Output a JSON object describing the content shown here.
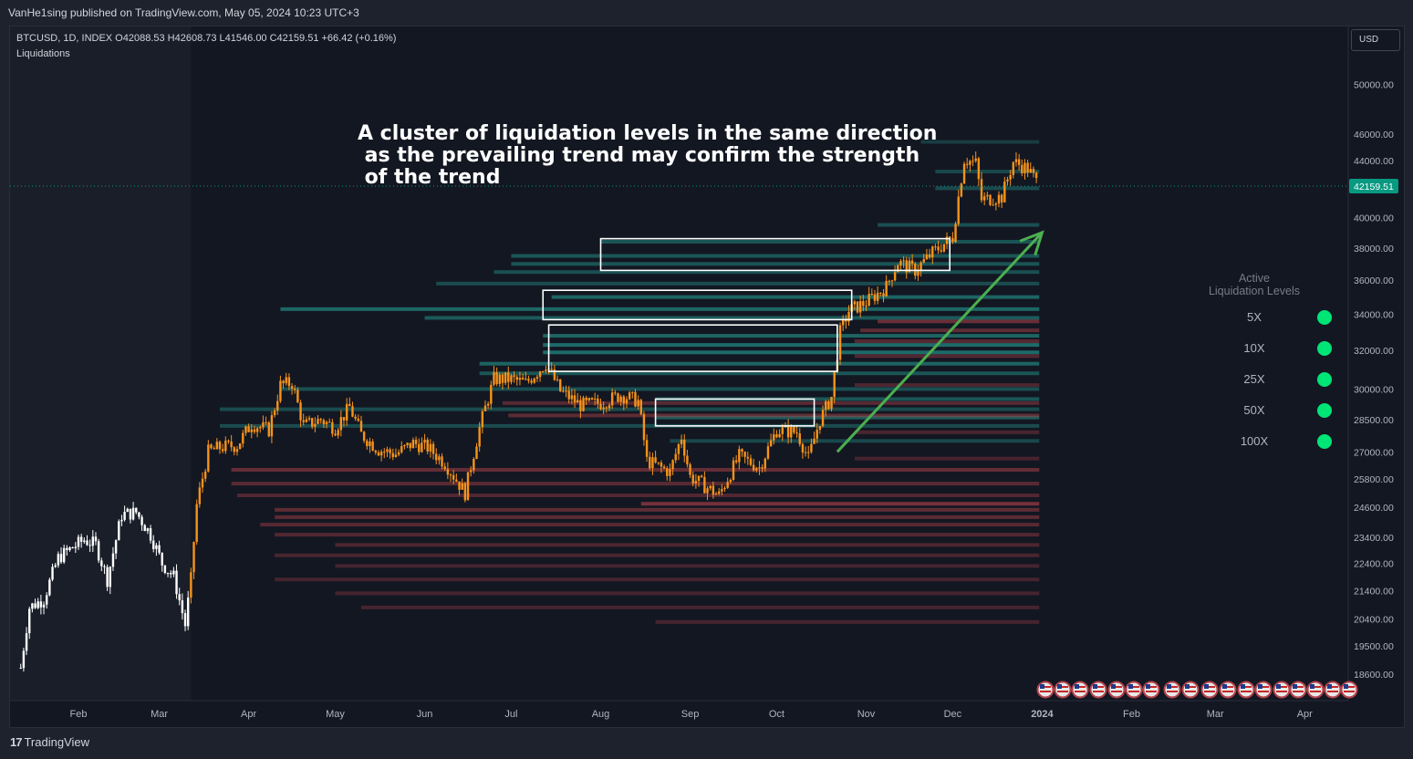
{
  "header": {
    "published": "VanHe1sing published on TradingView.com, May 05, 2024 10:23 UTC+3"
  },
  "symbol": {
    "line": "BTCUSD, 1D, INDEX  O42088.53  H42608.73  L41546.00  C42159.51  +66.42 (+0.16%)",
    "indicator": "Liquidations"
  },
  "currency_label": "USD",
  "annotation": {
    "lines": [
      "A cluster of liquidation levels in the same direction",
      " as the prevailing trend may confirm the strength",
      " of the trend"
    ]
  },
  "legend": {
    "title_line1": "Active",
    "title_line2": "Liquidation Levels",
    "items": [
      {
        "label": "5X",
        "color": "#00e676"
      },
      {
        "label": "10X",
        "color": "#00e676"
      },
      {
        "label": "25X",
        "color": "#00e676"
      },
      {
        "label": "50X",
        "color": "#00e676"
      },
      {
        "label": "100X",
        "color": "#00e676"
      }
    ]
  },
  "footer": {
    "brand": "TradingView",
    "brand_mark": "17"
  },
  "colors": {
    "background": "#131722",
    "candle_pre_indicator": "#ffffff",
    "candle": "#f7931a",
    "long_liquidation": "#26a69a",
    "short_liquidation": "#b2424a",
    "highlight_box": "#ffffff",
    "trend_arrow": "#4caf50",
    "price_label": "#089981"
  },
  "chart_data": {
    "type": "candlestick",
    "title": "BTCUSD, 1D, INDEX",
    "ylabel": "USD",
    "x_ticks": [
      "Feb",
      "Mar",
      "Apr",
      "May",
      "Jun",
      "Jul",
      "Aug",
      "Sep",
      "Oct",
      "Nov",
      "Dec",
      "2024",
      "Feb",
      "Mar",
      "Apr"
    ],
    "y_ticks": [
      50000,
      46000,
      44000,
      40000,
      38000,
      36000,
      34000,
      32000,
      30000,
      28500,
      27000,
      25800,
      24600,
      23400,
      22400,
      21400,
      20400,
      19500,
      18600
    ],
    "y_tick_labels": [
      "50000.00",
      "46000.00",
      "44000.00",
      "40000.00",
      "38000.00",
      "36000.00",
      "34000.00",
      "32000.00",
      "30000.00",
      "28500.00",
      "27000.00",
      "25800.00",
      "24600.00",
      "23400.00",
      "22400.00",
      "21400.00",
      "20400.00",
      "19500.00",
      "18600.00"
    ],
    "last_price": 42159.51,
    "last_price_label": "42159.51",
    "indicator_start": "2023-03-12",
    "daily_close_2023": [
      {
        "date": "2023-01-12",
        "close": 18800
      },
      {
        "date": "2023-01-15",
        "close": 20800
      },
      {
        "date": "2023-01-20",
        "close": 21100
      },
      {
        "date": "2023-01-25",
        "close": 22600
      },
      {
        "date": "2023-01-30",
        "close": 23000
      },
      {
        "date": "2023-02-03",
        "close": 23300
      },
      {
        "date": "2023-02-07",
        "close": 23100
      },
      {
        "date": "2023-02-11",
        "close": 21800
      },
      {
        "date": "2023-02-16",
        "close": 24300
      },
      {
        "date": "2023-02-21",
        "close": 24400
      },
      {
        "date": "2023-02-26",
        "close": 23500
      },
      {
        "date": "2023-03-02",
        "close": 22400
      },
      {
        "date": "2023-03-06",
        "close": 21900
      },
      {
        "date": "2023-03-10",
        "close": 20200
      },
      {
        "date": "2023-03-12",
        "close": 21800
      },
      {
        "date": "2023-03-14",
        "close": 24700
      },
      {
        "date": "2023-03-18",
        "close": 27000
      },
      {
        "date": "2023-03-22",
        "close": 27200
      },
      {
        "date": "2023-03-28",
        "close": 27300
      },
      {
        "date": "2023-04-02",
        "close": 28300
      },
      {
        "date": "2023-04-08",
        "close": 28000
      },
      {
        "date": "2023-04-12",
        "close": 30200
      },
      {
        "date": "2023-04-16",
        "close": 30300
      },
      {
        "date": "2023-04-20",
        "close": 28200
      },
      {
        "date": "2023-04-26",
        "close": 28500
      },
      {
        "date": "2023-05-01",
        "close": 28100
      },
      {
        "date": "2023-05-06",
        "close": 29100
      },
      {
        "date": "2023-05-10",
        "close": 27800
      },
      {
        "date": "2023-05-16",
        "close": 27100
      },
      {
        "date": "2023-05-22",
        "close": 26900
      },
      {
        "date": "2023-05-28",
        "close": 27400
      },
      {
        "date": "2023-06-02",
        "close": 27200
      },
      {
        "date": "2023-06-08",
        "close": 26500
      },
      {
        "date": "2023-06-15",
        "close": 25200
      },
      {
        "date": "2023-06-20",
        "close": 28100
      },
      {
        "date": "2023-06-25",
        "close": 30500
      },
      {
        "date": "2023-07-01",
        "close": 30500
      },
      {
        "date": "2023-07-06",
        "close": 30300
      },
      {
        "date": "2023-07-13",
        "close": 31300
      },
      {
        "date": "2023-07-18",
        "close": 29900
      },
      {
        "date": "2023-07-25",
        "close": 29200
      },
      {
        "date": "2023-08-01",
        "close": 29300
      },
      {
        "date": "2023-08-08",
        "close": 29700
      },
      {
        "date": "2023-08-14",
        "close": 29400
      },
      {
        "date": "2023-08-17",
        "close": 26600
      },
      {
        "date": "2023-08-25",
        "close": 26100
      },
      {
        "date": "2023-08-29",
        "close": 27700
      },
      {
        "date": "2023-09-01",
        "close": 25900
      },
      {
        "date": "2023-09-11",
        "close": 25100
      },
      {
        "date": "2023-09-18",
        "close": 26800
      },
      {
        "date": "2023-09-25",
        "close": 26300
      },
      {
        "date": "2023-10-01",
        "close": 28000
      },
      {
        "date": "2023-10-08",
        "close": 27900
      },
      {
        "date": "2023-10-12",
        "close": 26700
      },
      {
        "date": "2023-10-16",
        "close": 28500
      },
      {
        "date": "2023-10-20",
        "close": 29600
      },
      {
        "date": "2023-10-23",
        "close": 33000
      },
      {
        "date": "2023-10-26",
        "close": 34200
      },
      {
        "date": "2023-11-01",
        "close": 34700
      },
      {
        "date": "2023-11-08",
        "close": 35600
      },
      {
        "date": "2023-11-12",
        "close": 37100
      },
      {
        "date": "2023-11-18",
        "close": 36600
      },
      {
        "date": "2023-11-24",
        "close": 37700
      },
      {
        "date": "2023-12-01",
        "close": 38700
      },
      {
        "date": "2023-12-05",
        "close": 44100
      },
      {
        "date": "2023-12-09",
        "close": 43800
      },
      {
        "date": "2023-12-11",
        "close": 41200
      },
      {
        "date": "2023-12-18",
        "close": 41400
      },
      {
        "date": "2023-12-22",
        "close": 43900
      },
      {
        "date": "2023-12-27",
        "close": 43400
      },
      {
        "date": "2023-12-31",
        "close": 42160
      }
    ],
    "long_liquidation_levels": [
      {
        "price": 45400,
        "start": "2023-11-20",
        "intensity": 0.2
      },
      {
        "price": 43200,
        "start": "2023-11-25",
        "intensity": 0.35
      },
      {
        "price": 42000,
        "start": "2023-11-25",
        "intensity": 0.4
      },
      {
        "price": 39500,
        "start": "2023-11-05",
        "intensity": 0.45
      },
      {
        "price": 38400,
        "start": "2023-08-01",
        "intensity": 0.5
      },
      {
        "price": 37500,
        "start": "2023-07-01",
        "intensity": 0.55
      },
      {
        "price": 37000,
        "start": "2023-07-01",
        "intensity": 0.5
      },
      {
        "price": 36500,
        "start": "2023-06-25",
        "intensity": 0.45
      },
      {
        "price": 35800,
        "start": "2023-06-05",
        "intensity": 0.4
      },
      {
        "price": 35000,
        "start": "2023-07-15",
        "intensity": 0.7
      },
      {
        "price": 34300,
        "start": "2023-04-12",
        "intensity": 0.75
      },
      {
        "price": 33800,
        "start": "2023-06-01",
        "intensity": 0.6
      },
      {
        "price": 32800,
        "start": "2023-07-12",
        "intensity": 0.7
      },
      {
        "price": 32300,
        "start": "2023-07-12",
        "intensity": 0.8
      },
      {
        "price": 31900,
        "start": "2023-07-12",
        "intensity": 0.8
      },
      {
        "price": 31300,
        "start": "2023-06-20",
        "intensity": 0.7
      },
      {
        "price": 30800,
        "start": "2023-06-20",
        "intensity": 0.5
      },
      {
        "price": 30000,
        "start": "2023-04-12",
        "intensity": 0.45
      },
      {
        "price": 29500,
        "start": "2023-08-20",
        "intensity": 0.5
      },
      {
        "price": 29000,
        "start": "2023-03-22",
        "intensity": 0.4
      },
      {
        "price": 28600,
        "start": "2023-08-20",
        "intensity": 0.6
      },
      {
        "price": 28200,
        "start": "2023-03-22",
        "intensity": 0.4
      },
      {
        "price": 27500,
        "start": "2023-08-25",
        "intensity": 0.35
      }
    ],
    "short_liquidation_levels": [
      {
        "price": 33600,
        "start": "2023-11-05",
        "intensity": 0.7
      },
      {
        "price": 33100,
        "start": "2023-10-30",
        "intensity": 0.6
      },
      {
        "price": 32500,
        "start": "2023-10-28",
        "intensity": 0.5
      },
      {
        "price": 31700,
        "start": "2023-10-28",
        "intensity": 0.45
      },
      {
        "price": 30200,
        "start": "2023-10-28",
        "intensity": 0.4
      },
      {
        "price": 29300,
        "start": "2023-06-28",
        "intensity": 0.5
      },
      {
        "price": 28700,
        "start": "2023-06-30",
        "intensity": 0.6
      },
      {
        "price": 27900,
        "start": "2023-10-28",
        "intensity": 0.35
      },
      {
        "price": 26700,
        "start": "2023-10-28",
        "intensity": 0.3
      },
      {
        "price": 26200,
        "start": "2023-03-26",
        "intensity": 0.65
      },
      {
        "price": 25600,
        "start": "2023-03-26",
        "intensity": 0.55
      },
      {
        "price": 25100,
        "start": "2023-03-28",
        "intensity": 0.45
      },
      {
        "price": 24750,
        "start": "2023-08-15",
        "intensity": 0.85
      },
      {
        "price": 24500,
        "start": "2023-04-10",
        "intensity": 0.6
      },
      {
        "price": 24200,
        "start": "2023-04-10",
        "intensity": 0.55
      },
      {
        "price": 23900,
        "start": "2023-04-05",
        "intensity": 0.5
      },
      {
        "price": 23500,
        "start": "2023-04-10",
        "intensity": 0.45
      },
      {
        "price": 23100,
        "start": "2023-05-01",
        "intensity": 0.4
      },
      {
        "price": 22700,
        "start": "2023-04-10",
        "intensity": 0.35
      },
      {
        "price": 22300,
        "start": "2023-05-01",
        "intensity": 0.3
      },
      {
        "price": 21800,
        "start": "2023-04-10",
        "intensity": 0.3
      },
      {
        "price": 21300,
        "start": "2023-05-01",
        "intensity": 0.3
      },
      {
        "price": 20800,
        "start": "2023-05-10",
        "intensity": 0.3
      },
      {
        "price": 20300,
        "start": "2023-08-20",
        "intensity": 0.3
      }
    ],
    "highlighted_regions": [
      {
        "from": "2023-08-01",
        "to": "2023-11-30",
        "price_low": 36600,
        "price_high": 38600
      },
      {
        "from": "2023-07-12",
        "to": "2023-10-27",
        "price_low": 33700,
        "price_high": 35400
      },
      {
        "from": "2023-07-14",
        "to": "2023-10-22",
        "price_low": 30900,
        "price_high": 33400
      },
      {
        "from": "2023-08-20",
        "to": "2023-10-14",
        "price_low": 28200,
        "price_high": 29500
      }
    ],
    "trend_arrow": {
      "from": {
        "date": "2023-10-22",
        "price": 27000
      },
      "to": {
        "date": "2024-01-01",
        "price": 39000
      }
    }
  }
}
